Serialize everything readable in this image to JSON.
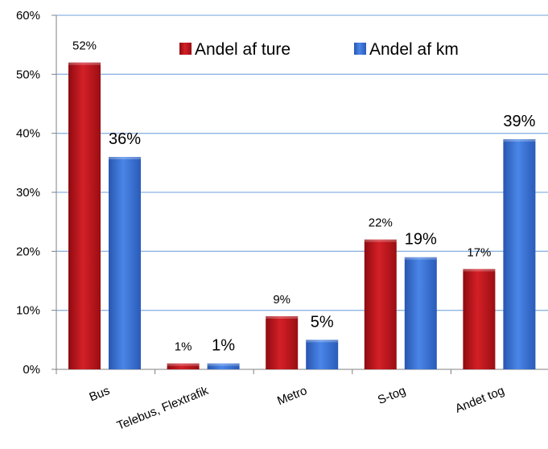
{
  "chart_data": {
    "type": "bar",
    "categories": [
      "Bus",
      "Telebus, Flextrafik",
      "Metro",
      "S-tog",
      "Andet tog"
    ],
    "series": [
      {
        "name": "Andel af ture",
        "values": [
          52,
          1,
          9,
          22,
          17
        ],
        "labels": [
          "52%",
          "1%",
          "9%",
          "22%",
          "17%"
        ],
        "color": "#c0161c"
      },
      {
        "name": "Andel af km",
        "values": [
          36,
          1,
          5,
          19,
          39
        ],
        "labels": [
          "36%",
          "1%",
          "5%",
          "19%",
          "39%"
        ],
        "color": "#3a72d8"
      }
    ],
    "ylim": [
      0,
      60
    ],
    "yticks": [
      0,
      10,
      20,
      30,
      40,
      50,
      60
    ],
    "ytick_labels": [
      "0%",
      "10%",
      "20%",
      "30%",
      "40%",
      "50%",
      "60%"
    ],
    "grid": true,
    "legend_position": "top"
  }
}
